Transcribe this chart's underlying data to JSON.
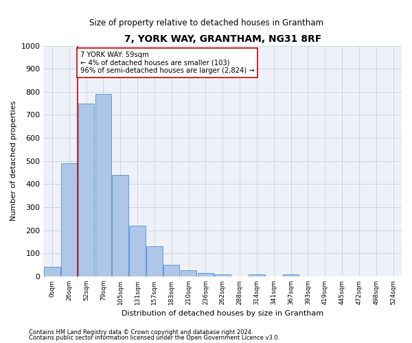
{
  "title": "7, YORK WAY, GRANTHAM, NG31 8RF",
  "subtitle": "Size of property relative to detached houses in Grantham",
  "xlabel": "Distribution of detached houses by size in Grantham",
  "ylabel": "Number of detached properties",
  "bar_labels": [
    "0sqm",
    "26sqm",
    "52sqm",
    "79sqm",
    "105sqm",
    "131sqm",
    "157sqm",
    "183sqm",
    "210sqm",
    "236sqm",
    "262sqm",
    "288sqm",
    "314sqm",
    "341sqm",
    "367sqm",
    "393sqm",
    "419sqm",
    "445sqm",
    "472sqm",
    "498sqm",
    "524sqm"
  ],
  "heights": [
    40,
    490,
    750,
    790,
    440,
    220,
    130,
    50,
    28,
    15,
    10,
    0,
    8,
    0,
    8,
    0,
    0,
    0,
    0,
    0,
    0
  ],
  "bar_color": "#aec6e8",
  "bar_edge_color": "#5b9bd5",
  "vline_x": 1.5,
  "vline_color": "#cc0000",
  "annotation_text": "7 YORK WAY: 59sqm\n← 4% of detached houses are smaller (103)\n96% of semi-detached houses are larger (2,824) →",
  "annotation_box_color": "#ffffff",
  "annotation_border_color": "#cc0000",
  "ylim": [
    0,
    1000
  ],
  "yticks": [
    0,
    100,
    200,
    300,
    400,
    500,
    600,
    700,
    800,
    900,
    1000
  ],
  "footer_line1": "Contains HM Land Registry data © Crown copyright and database right 2024.",
  "footer_line2": "Contains public sector information licensed under the Open Government Licence v3.0.",
  "background_color": "#ffffff",
  "plot_bg_color": "#eef2f8",
  "grid_color": "#c8d0dc"
}
